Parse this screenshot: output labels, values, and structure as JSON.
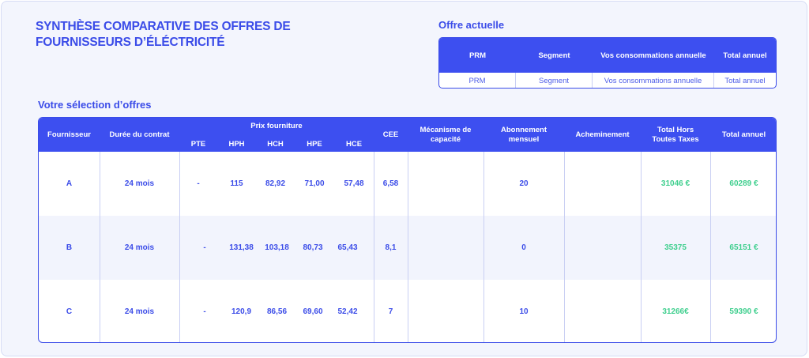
{
  "page": {
    "title": "SYNTHÈSE COMPARATIVE DES OFFRES DE FOURNISSEURS D’ÉLÉCTRICITÉ",
    "colors": {
      "accent": "#3d4ff0",
      "text_blue": "#3b4ce8",
      "positive": "#3fcf8e",
      "background": "#f3f5fd"
    }
  },
  "current_offer": {
    "heading": "Offre actuelle",
    "headers": [
      "PRM",
      "Segment",
      "Vos consommations annuelle",
      "Total annuel"
    ],
    "row": [
      "PRM",
      "Segment",
      "Vos consommations annuelle",
      "Total annuel"
    ]
  },
  "selection": {
    "heading": "Votre sélection d’offres",
    "headers": {
      "supplier": "Fournisseur",
      "duration": "Durée du contrat",
      "supply_price": "Prix fourniture",
      "pte": "PTE",
      "hph": "HPH",
      "hch": "HCH",
      "hpe": "HPE",
      "hce": "HCE",
      "cee": "CEE",
      "capacity": "Mécanisme de capacité",
      "subscription": "Abonnement mensuel",
      "routing": "Acheminement",
      "total_ht": "Total Hors Toutes Taxes",
      "total": "Total annuel"
    },
    "rows": [
      {
        "supplier": "A",
        "duration": "24 mois",
        "pte": "-",
        "hph": "115",
        "hch": "82,92",
        "hpe": "71,00",
        "hce": "57,48",
        "cee": "6,58",
        "capacity": "",
        "subscription": "20",
        "routing": "",
        "total_ht": "31046 €",
        "total": "60289 €"
      },
      {
        "supplier": "B",
        "duration": "24 mois",
        "pte": "-",
        "hph": "131,38",
        "hch": "103,18",
        "hpe": "80,73",
        "hce": "65,43",
        "cee": "8,1",
        "capacity": "",
        "subscription": "0",
        "routing": "",
        "total_ht": "35375",
        "total": "65151 €"
      },
      {
        "supplier": "C",
        "duration": "24 mois",
        "pte": "-",
        "hph": "120,9",
        "hch": "86,56",
        "hpe": "69,60",
        "hce": "52,42",
        "cee": "7",
        "capacity": "",
        "subscription": "10",
        "routing": "",
        "total_ht": "31266€",
        "total": "59390 €"
      }
    ]
  }
}
